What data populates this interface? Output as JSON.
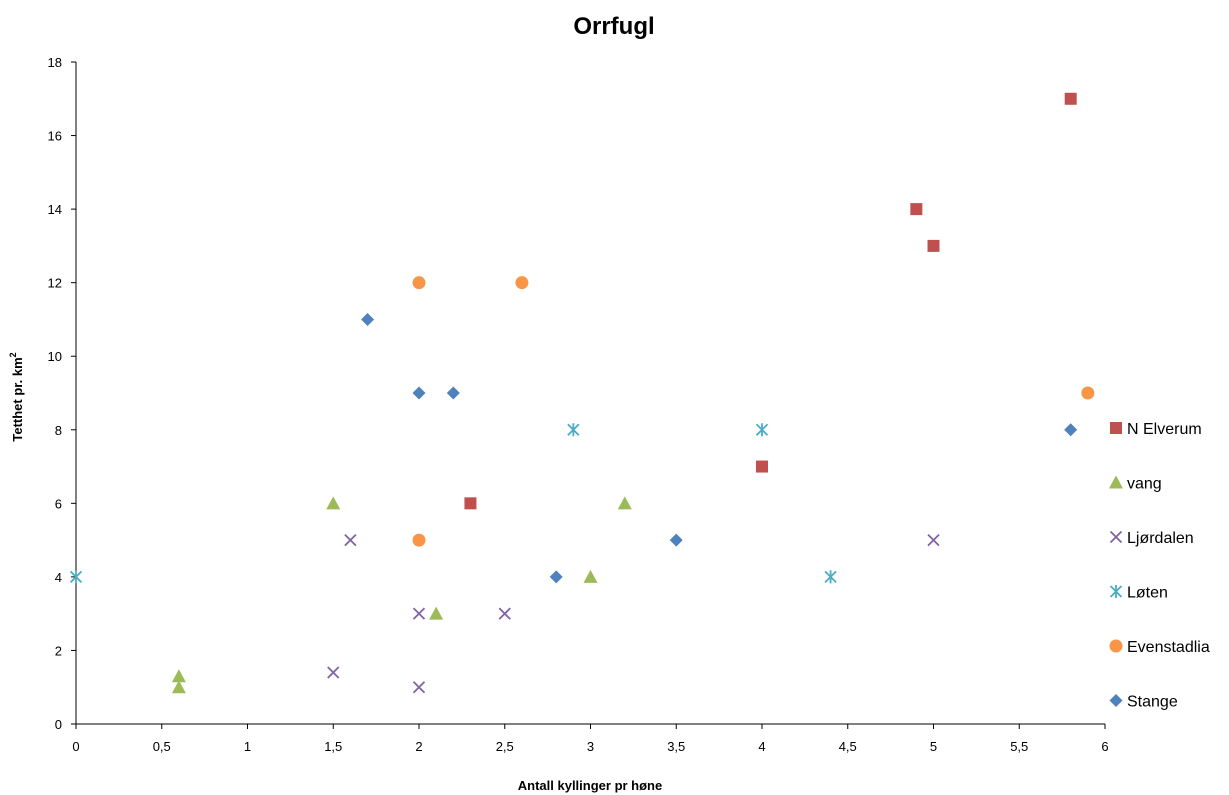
{
  "chart_data": {
    "type": "scatter",
    "title": "Orrfugl",
    "xlabel": "Antall kyllinger pr høne",
    "ylabel_main": "Tetthet  pr. km",
    "ylabel_sup": "2",
    "xlim": [
      0,
      6
    ],
    "ylim": [
      0,
      18
    ],
    "x_ticks": [
      0,
      0.5,
      1,
      1.5,
      2,
      2.5,
      3,
      3.5,
      4,
      4.5,
      5,
      5.5,
      6
    ],
    "x_tick_labels": [
      "0",
      "0,5",
      "1",
      "1,5",
      "2",
      "2,5",
      "3",
      "3,5",
      "4",
      "4,5",
      "5",
      "5,5",
      "6"
    ],
    "y_ticks": [
      0,
      2,
      4,
      6,
      8,
      10,
      12,
      14,
      16,
      18
    ],
    "y_tick_labels": [
      "0",
      "2",
      "4",
      "6",
      "8",
      "10",
      "12",
      "14",
      "16",
      "18"
    ],
    "grid": false,
    "legend_position": "right",
    "series": [
      {
        "name": "N Elverum",
        "marker": "square",
        "color": "#C0504D",
        "points": [
          [
            2.3,
            6
          ],
          [
            4.0,
            7
          ],
          [
            4.9,
            14
          ],
          [
            5.0,
            13
          ],
          [
            5.8,
            17
          ]
        ]
      },
      {
        "name": "vang",
        "marker": "triangle",
        "color": "#9BBB59",
        "points": [
          [
            0.6,
            1.3
          ],
          [
            0.6,
            1.0
          ],
          [
            1.5,
            6
          ],
          [
            2.1,
            3
          ],
          [
            3.0,
            4
          ],
          [
            3.2,
            6
          ]
        ]
      },
      {
        "name": "Ljørdalen",
        "marker": "x",
        "color": "#8064A2",
        "points": [
          [
            1.5,
            1.4
          ],
          [
            1.6,
            5
          ],
          [
            2.0,
            3
          ],
          [
            2.0,
            1
          ],
          [
            2.5,
            3
          ],
          [
            5.0,
            5
          ]
        ]
      },
      {
        "name": "Løten",
        "marker": "star",
        "color": "#4BACC6",
        "points": [
          [
            0.0,
            4
          ],
          [
            2.9,
            8
          ],
          [
            4.0,
            8
          ],
          [
            4.4,
            4
          ]
        ]
      },
      {
        "name": "Evenstadlia",
        "marker": "circle",
        "color": "#F79646",
        "points": [
          [
            2.0,
            12
          ],
          [
            2.6,
            12
          ],
          [
            2.0,
            5
          ],
          [
            5.9,
            9
          ]
        ]
      },
      {
        "name": "Stange",
        "marker": "diamond",
        "color": "#4F81BD",
        "points": [
          [
            1.7,
            11
          ],
          [
            2.0,
            9
          ],
          [
            2.2,
            9
          ],
          [
            2.8,
            4
          ],
          [
            3.5,
            5
          ],
          [
            5.8,
            8
          ]
        ]
      }
    ]
  }
}
